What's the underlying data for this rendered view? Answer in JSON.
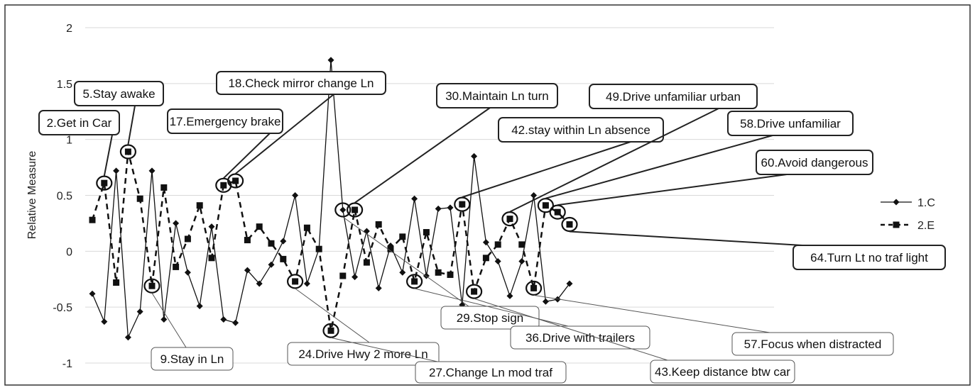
{
  "chart_data": {
    "type": "line",
    "ylabel": "Relative Measure",
    "ylim": [
      -1,
      2
    ],
    "yticks": [
      "2",
      "1.5",
      "1",
      "0.5",
      "0",
      "-0.5",
      "-1"
    ],
    "legend_position": "right",
    "series": [
      {
        "name": "1.C",
        "style": "solid",
        "marker": "diamond",
        "values": [
          -0.38,
          -0.63,
          0.72,
          -0.77,
          -0.54,
          0.72,
          -0.61,
          0.25,
          -0.19,
          -0.49,
          0.22,
          -0.61,
          -0.64,
          -0.17,
          -0.29,
          -0.12,
          0.09,
          0.5,
          -0.29,
          0.02,
          1.71,
          0.37,
          -0.23,
          0.18,
          -0.33,
          0.05,
          -0.19,
          0.47,
          -0.22,
          0.38,
          0.39,
          -0.48,
          0.85,
          0.08,
          -0.09,
          -0.4,
          -0.09,
          0.5,
          -0.45,
          -0.43,
          -0.29
        ]
      },
      {
        "name": "2.E",
        "style": "dashed",
        "marker": "square",
        "values": [
          0.28,
          0.61,
          -0.28,
          0.89,
          0.47,
          -0.31,
          0.57,
          -0.14,
          0.11,
          0.41,
          -0.06,
          0.59,
          0.63,
          0.1,
          0.22,
          0.07,
          -0.07,
          -0.27,
          0.21,
          0.02,
          -0.71,
          -0.22,
          0.37,
          -0.1,
          0.24,
          0.02,
          0.13,
          -0.27,
          0.17,
          -0.19,
          -0.21,
          0.42,
          -0.36,
          -0.06,
          0.06,
          0.29,
          0.06,
          -0.33,
          0.41,
          0.35,
          0.24
        ]
      }
    ],
    "annotations": [
      {
        "label": "2.Get in Car",
        "series": 1,
        "index": 1
      },
      {
        "label": "5.Stay awake",
        "series": 1,
        "index": 3
      },
      {
        "label": "9.Stay in Ln",
        "series": 1,
        "index": 5
      },
      {
        "label": "17.Emergency brake",
        "series": 1,
        "index": 11
      },
      {
        "label": "18.Check mirror change Ln",
        "series": 1,
        "index": 12
      },
      {
        "label": "24.Drive Hwy 2 more Ln",
        "series": 1,
        "index": 17
      },
      {
        "label": "27.Change Ln mod traf",
        "series": 1,
        "index": 20
      },
      {
        "label": "29.Stop sign",
        "series": 0,
        "index": 21
      },
      {
        "label": "30.Maintain Ln turn",
        "series": 1,
        "index": 22
      },
      {
        "label": "36.Drive with trailers",
        "series": 1,
        "index": 27
      },
      {
        "label": "42.stay within Ln absence",
        "series": 1,
        "index": 31
      },
      {
        "label": "43.Keep distance btw car",
        "series": 1,
        "index": 32
      },
      {
        "label": "49.Drive unfamiliar urban",
        "series": 1,
        "index": 35
      },
      {
        "label": "57.Focus when distracted",
        "series": 1,
        "index": 37
      },
      {
        "label": "58.Drive unfamiliar",
        "series": 1,
        "index": 38
      },
      {
        "label": "60.Avoid dangerous",
        "series": 1,
        "index": 39
      },
      {
        "label": "64.Turn Lt no traf light",
        "series": 1,
        "index": 40
      }
    ]
  }
}
